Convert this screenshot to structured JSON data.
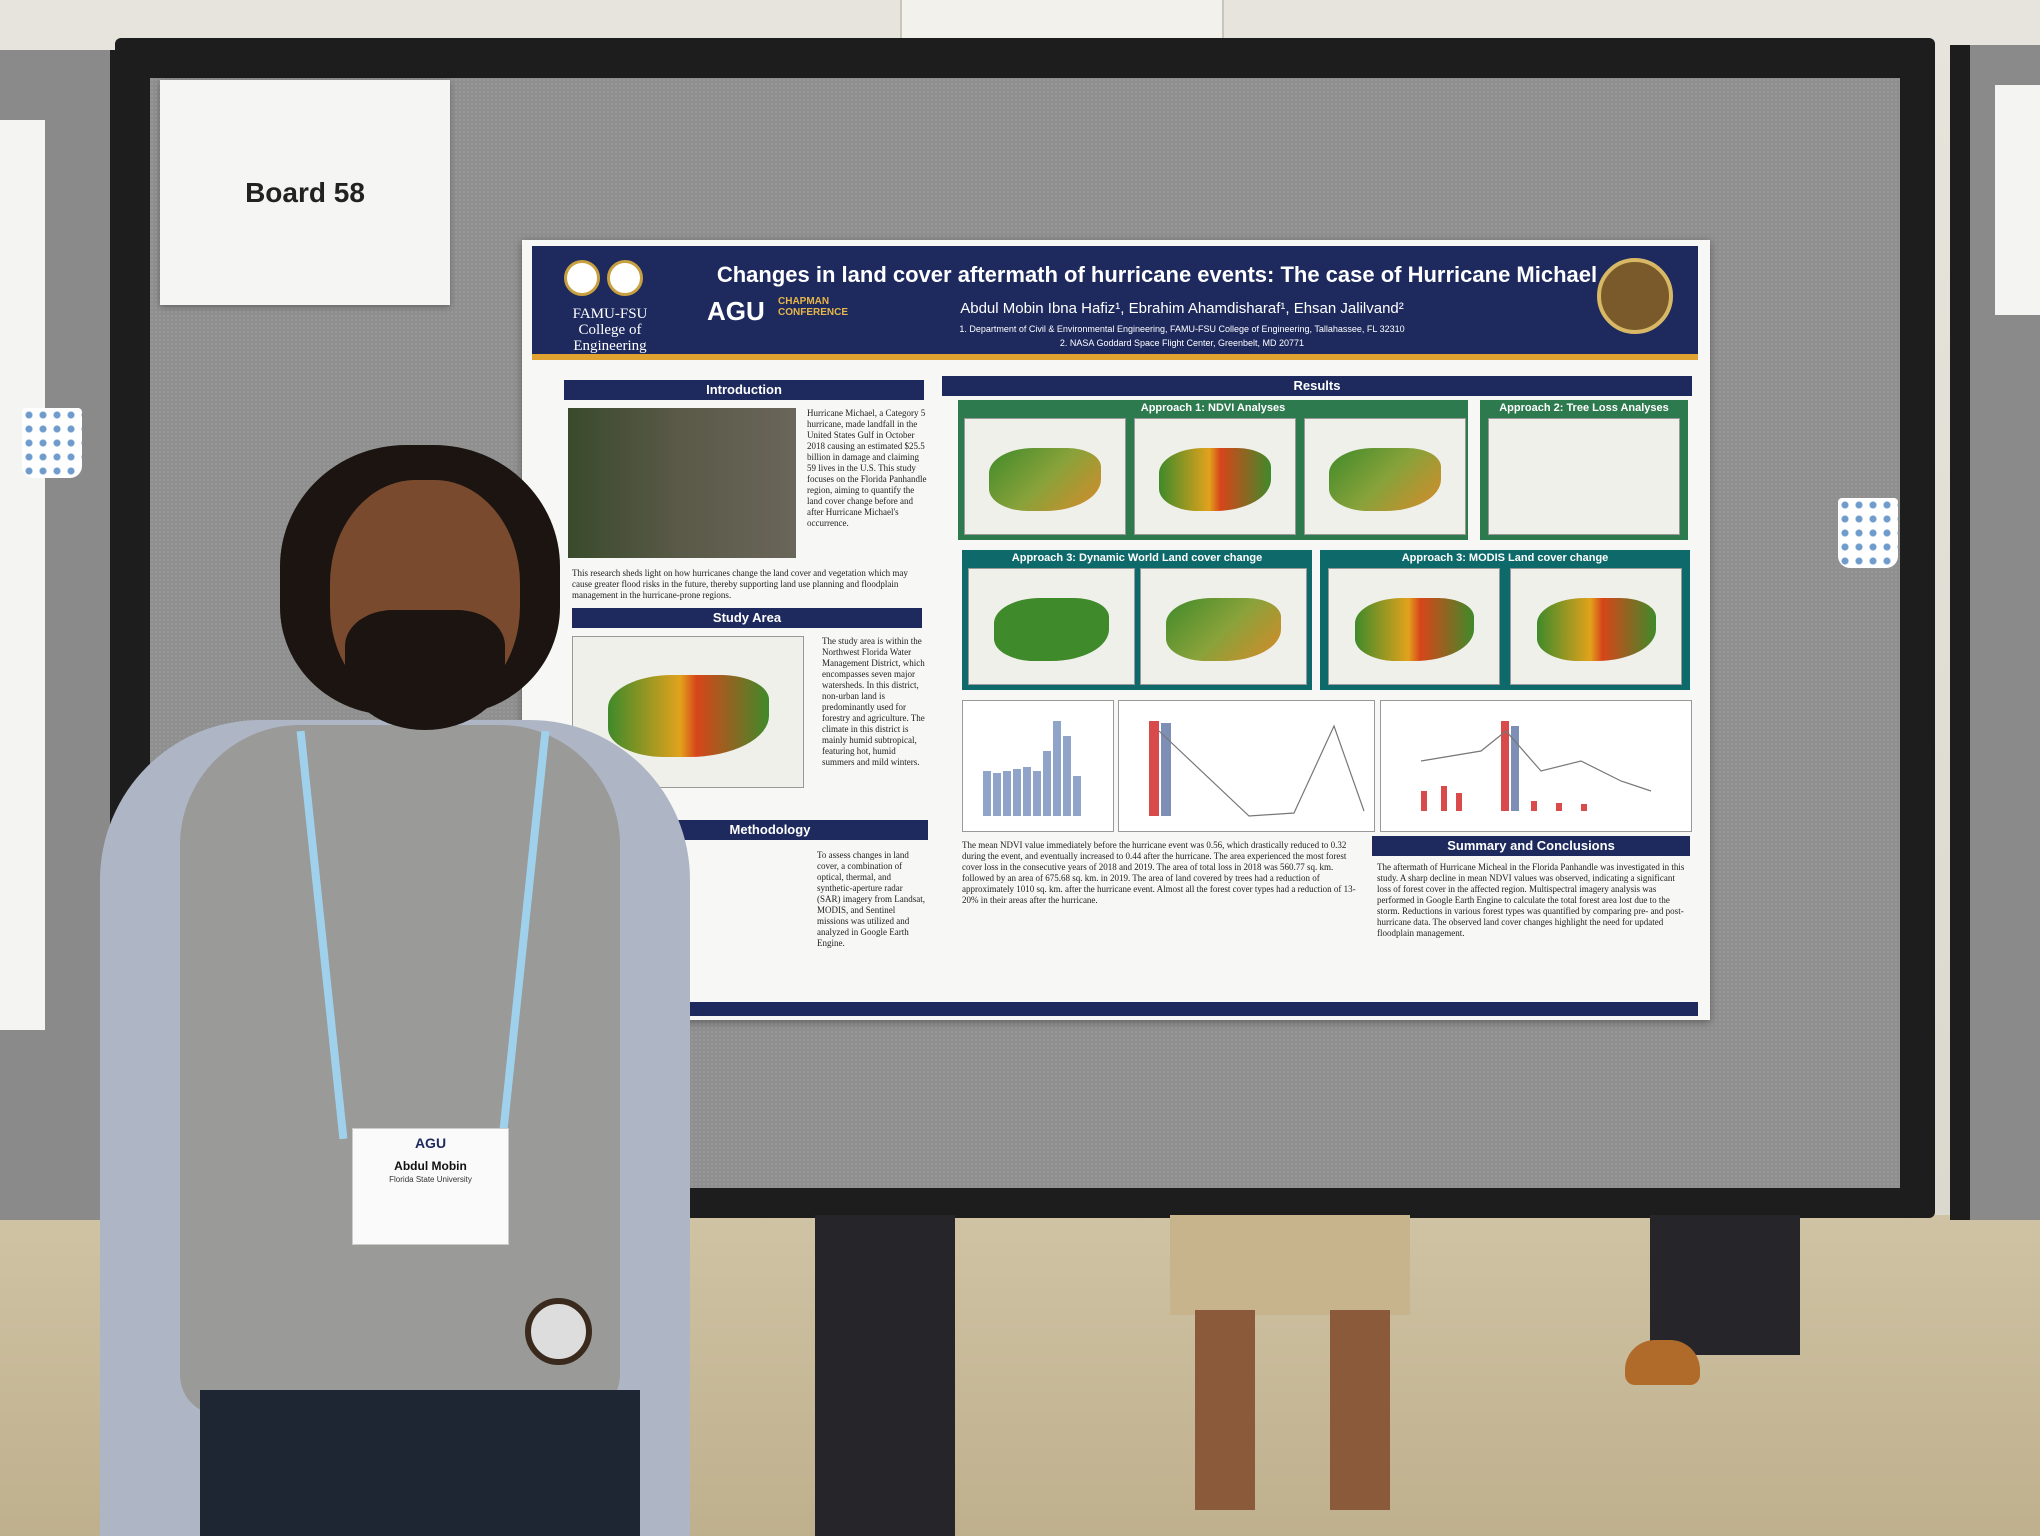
{
  "board_sign": "Board 58",
  "poster": {
    "title": "Changes in land cover aftermath of hurricane events: The case of Hurricane Michael",
    "authors": "Abdul Mobin Ibna Hafiz¹, Ebrahim Ahamdisharaf¹, Ehsan Jalilvand²",
    "affiliation_1": "1. Department of Civil & Environmental Engineering, FAMU-FSU College of Engineering, Tallahassee, FL 32310",
    "affiliation_2": "2. NASA Goddard Space Flight Center, Greenbelt, MD 20771",
    "logo_left_text": "FAMU-FSU College of Engineering",
    "agu_text": "AGU",
    "chapman_text": "CHAPMAN CONFERENCE",
    "sections": {
      "introduction": "Introduction",
      "study_area": "Study Area",
      "methodology": "Methodology",
      "results": "Results",
      "summary": "Summary and Conclusions"
    },
    "intro_text": "Hurricane Michael, a Category 5 hurricane, made landfall in the United States Gulf in October 2018 causing an estimated $25.5 billion in damage and claiming 59 lives in the U.S. This study focuses on the Florida Panhandle region, aiming to quantify the land cover change before and after Hurricane Michael's occurrence.",
    "intro_bullet": "This research sheds light on how hurricanes change the land cover and vegetation which may cause greater flood risks in the future, thereby supporting land use planning and floodplain management in the hurricane-prone regions.",
    "study_area_text": "The study area is within the Northwest Florida Water Management District, which encompasses seven major watersheds. In this district, non-urban land is predominantly used for forestry and agriculture. The climate in this district is mainly humid subtropical, featuring hot, humid summers and mild winters.",
    "methodology_text": "To assess changes in land cover, a combination of optical, thermal, and synthetic-aperture radar (SAR) imagery from Landsat, MODIS, and Sentinel missions was utilized and analyzed in Google Earth Engine.",
    "approach_labels": {
      "a1": "Approach 1: NDVI Analyses",
      "a2": "Approach 2: Tree Loss Analyses",
      "a3a": "Approach 3: Dynamic World Land cover change",
      "a3b": "Approach 3: MODIS Land cover change"
    },
    "results_text": "The mean NDVI value immediately before the hurricane event was 0.56, which drastically reduced to 0.32 during the event, and eventually increased to 0.44 after the hurricane. The area experienced the most forest cover loss in the consecutive years of 2018 and 2019. The area of total loss in 2018 was 560.77 sq. km. followed by an area of 675.68 sq. km. in 2019. The area of land covered by trees had a reduction of approximately 1010 sq. km. after the hurricane event. Almost all the forest cover types had a reduction of 13-20% in their areas after the hurricane.",
    "summary_text": "The aftermath of Hurricane Micheal in the Florida Panhandle was investigated in this study. A sharp decline in mean NDVI values was observed, indicating a significant loss of forest cover in the affected region. Multispectral imagery analysis was performed in Google Earth Engine to calculate the total forest area lost due to the storm. Reductions in various forest types was quantified by comparing pre- and post-hurricane data. The observed land cover changes highlight the need for updated floodplain management."
  },
  "badge": {
    "agu": "AGU",
    "name": "Abdul Mobin",
    "university": "Florida State University"
  }
}
